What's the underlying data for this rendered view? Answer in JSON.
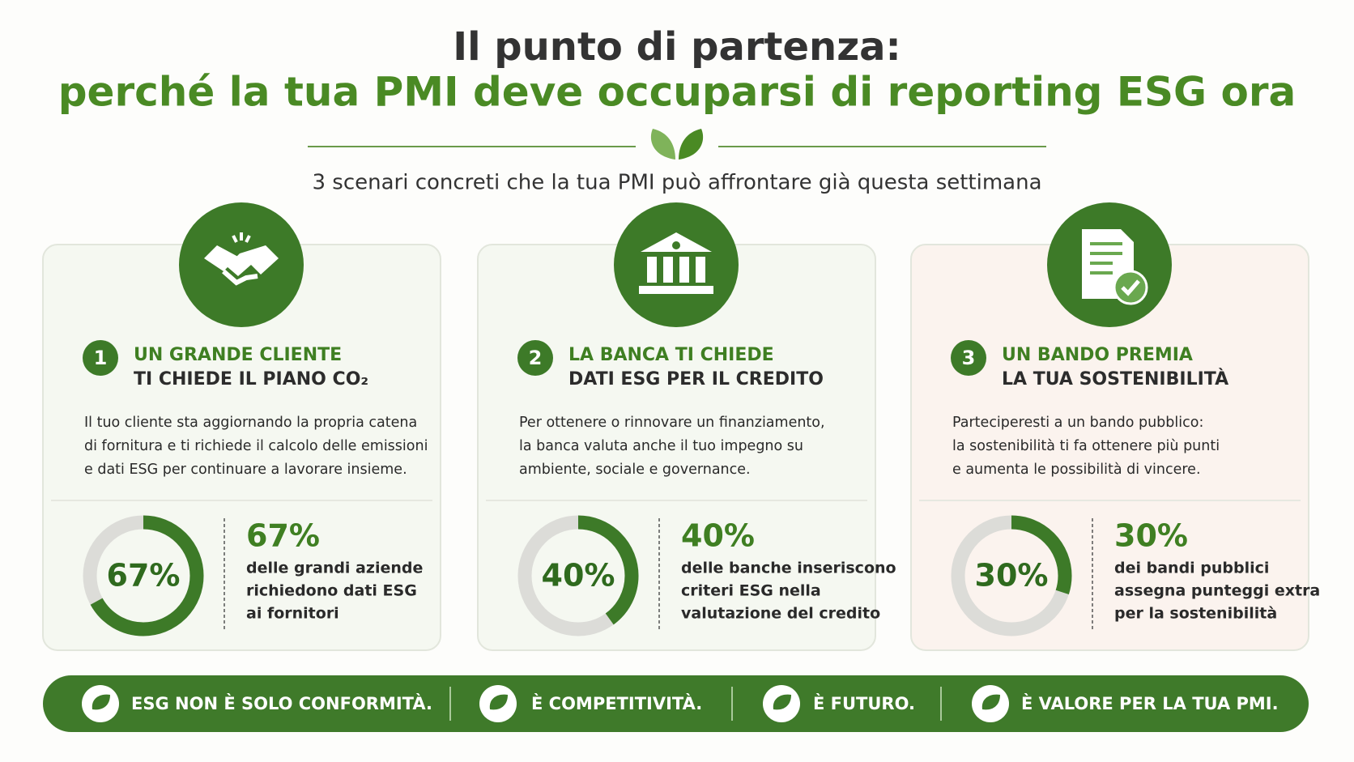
{
  "header": {
    "title": "Il punto di partenza:",
    "subtitle": "perché la tua PMI deve occuparsi di reporting ESG ora",
    "tagline": "3 scenari concreti che la tua PMI può affrontare già questa settimana"
  },
  "cards": [
    {
      "number": "1",
      "heading": [
        "UN GRANDE CLIENTE",
        "TI CHIEDE IL PIANO CO₂"
      ],
      "body": [
        "Il tuo cliente sta aggiornando la propria catena",
        "di fornitura e ti richiede il calcolo delle emissioni",
        "e dati ESG per continuare a lavorare insieme."
      ],
      "stat": {
        "value": 67,
        "label": "67%",
        "text": [
          "delle grandi aziende",
          "richiedono dati ESG",
          "ai fornitori"
        ]
      }
    },
    {
      "number": "2",
      "heading": [
        "LA BANCA TI CHIEDE",
        "DATI ESG PER IL CREDITO"
      ],
      "body": [
        "Per ottenere o rinnovare un finanziamento,",
        "la banca valuta anche il tuo impegno su",
        "ambiente, sociale e governance."
      ],
      "stat": {
        "value": 40,
        "label": "40%",
        "text": [
          "delle banche inseriscono",
          "criteri ESG nella",
          "valutazione del credito"
        ]
      }
    },
    {
      "number": "3",
      "heading": [
        "UN BANDO PREMIA",
        "LA TUA SOSTENIBILITÀ"
      ],
      "body": [
        "Parteciperesti a un bando pubblico:",
        "la sostenibilità ti fa ottenere più punti",
        "e aumenta le possibilità di vincere."
      ],
      "stat": {
        "value": 30,
        "label": "30%",
        "text": [
          "dei bandi pubblici",
          "assegna punteggi extra",
          "per la sostenibilità"
        ]
      }
    }
  ],
  "banner": [
    "ESG NON È SOLO CONFORMITÀ.",
    "È COMPETITIVITÀ.",
    "È FUTURO.",
    "È VALORE PER LA TUA PMI."
  ]
}
